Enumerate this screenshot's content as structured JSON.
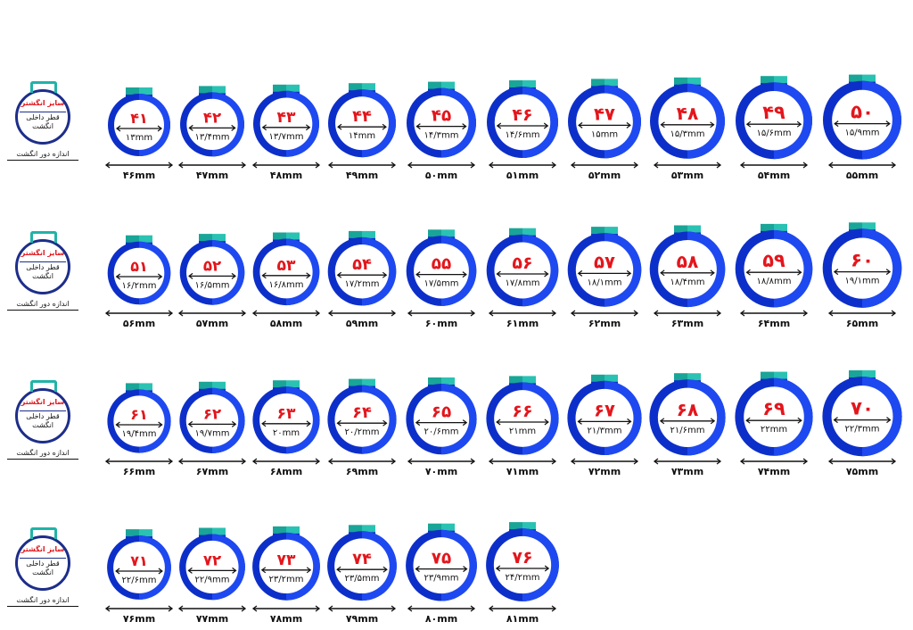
{
  "legend": {
    "title": "سایز انگشتر",
    "inner_label": "قطر داخلی انگشت",
    "bottom_label": "اندازه دور انگشت"
  },
  "rows": [
    {
      "rings": [
        {
          "size": "۴۱",
          "diameter": "۱۳mm",
          "circ": "۴۶mm"
        },
        {
          "size": "۴۲",
          "diameter": "۱۳/۴mm",
          "circ": "۴۷mm"
        },
        {
          "size": "۴۳",
          "diameter": "۱۳/۷mm",
          "circ": "۴۸mm"
        },
        {
          "size": "۴۴",
          "diameter": "۱۴mm",
          "circ": "۴۹mm"
        },
        {
          "size": "۴۵",
          "diameter": "۱۴/۳mm",
          "circ": "۵۰mm"
        },
        {
          "size": "۴۶",
          "diameter": "۱۴/۶mm",
          "circ": "۵۱mm"
        },
        {
          "size": "۴۷",
          "diameter": "۱۵mm",
          "circ": "۵۲mm"
        },
        {
          "size": "۴۸",
          "diameter": "۱۵/۳mm",
          "circ": "۵۳mm"
        },
        {
          "size": "۴۹",
          "diameter": "۱۵/۶mm",
          "circ": "۵۴mm"
        },
        {
          "size": "۵۰",
          "diameter": "۱۵/۹mm",
          "circ": "۵۵mm"
        }
      ]
    },
    {
      "rings": [
        {
          "size": "۵۱",
          "diameter": "۱۶/۲mm",
          "circ": "۵۶mm"
        },
        {
          "size": "۵۲",
          "diameter": "۱۶/۵mm",
          "circ": "۵۷mm"
        },
        {
          "size": "۵۳",
          "diameter": "۱۶/۸mm",
          "circ": "۵۸mm"
        },
        {
          "size": "۵۴",
          "diameter": "۱۷/۲mm",
          "circ": "۵۹mm"
        },
        {
          "size": "۵۵",
          "diameter": "۱۷/۵mm",
          "circ": "۶۰mm"
        },
        {
          "size": "۵۶",
          "diameter": "۱۷/۸mm",
          "circ": "۶۱mm"
        },
        {
          "size": "۵۷",
          "diameter": "۱۸/۱mm",
          "circ": "۶۲mm"
        },
        {
          "size": "۵۸",
          "diameter": "۱۸/۴mm",
          "circ": "۶۳mm"
        },
        {
          "size": "۵۹",
          "diameter": "۱۸/۸mm",
          "circ": "۶۴mm"
        },
        {
          "size": "۶۰",
          "diameter": "۱۹/۱mm",
          "circ": "۶۵mm"
        }
      ]
    },
    {
      "rings": [
        {
          "size": "۶۱",
          "diameter": "۱۹/۴mm",
          "circ": "۶۶mm"
        },
        {
          "size": "۶۲",
          "diameter": "۱۹/۷mm",
          "circ": "۶۷mm"
        },
        {
          "size": "۶۳",
          "diameter": "۲۰mm",
          "circ": "۶۸mm"
        },
        {
          "size": "۶۴",
          "diameter": "۲۰/۲mm",
          "circ": "۶۹mm"
        },
        {
          "size": "۶۵",
          "diameter": "۲۰/۶mm",
          "circ": "۷۰mm"
        },
        {
          "size": "۶۶",
          "diameter": "۲۱mm",
          "circ": "۷۱mm"
        },
        {
          "size": "۶۷",
          "diameter": "۲۱/۳mm",
          "circ": "۷۲mm"
        },
        {
          "size": "۶۸",
          "diameter": "۲۱/۶mm",
          "circ": "۷۳mm"
        },
        {
          "size": "۶۹",
          "diameter": "۲۲mm",
          "circ": "۷۴mm"
        },
        {
          "size": "۷۰",
          "diameter": "۲۲/۳mm",
          "circ": "۷۵mm"
        }
      ]
    },
    {
      "rings": [
        {
          "size": "۷۱",
          "diameter": "۲۲/۶mm",
          "circ": "۷۶mm"
        },
        {
          "size": "۷۲",
          "diameter": "۲۲/۹mm",
          "circ": "۷۷mm"
        },
        {
          "size": "۷۳",
          "diameter": "۲۳/۲mm",
          "circ": "۷۸mm"
        },
        {
          "size": "۷۴",
          "diameter": "۲۳/۵mm",
          "circ": "۷۹mm"
        },
        {
          "size": "۷۵",
          "diameter": "۲۳/۹mm",
          "circ": "۸۰mm"
        },
        {
          "size": "۷۶",
          "diameter": "۲۴/۲mm",
          "circ": "۸۱mm"
        }
      ]
    }
  ],
  "colors": {
    "ring_dark": "#0d2fc9",
    "ring_light": "#1e49f0",
    "tab_teal": "#19a597",
    "tab_teal_light": "#2ac2b2",
    "size_red": "#e3161c",
    "text_dark": "#111111"
  }
}
